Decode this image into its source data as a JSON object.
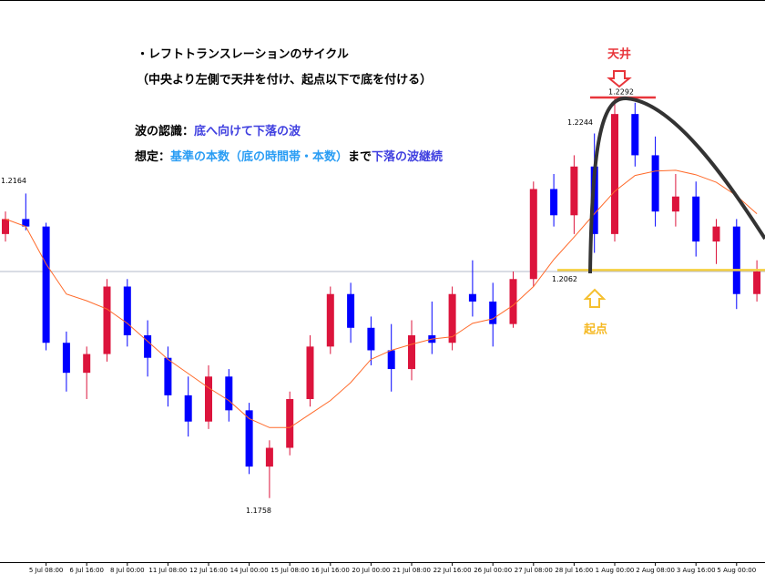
{
  "chart_data": {
    "type": "candlestick",
    "categories": [
      null,
      null,
      "5 Jul 08:00",
      null,
      "6 Jul 16:00",
      null,
      "8 Jul 00:00",
      null,
      "11 Jul 08:00",
      null,
      "12 Jul 16:00",
      null,
      "14 Jul 00:00",
      null,
      "15 Jul 08:00",
      null,
      "16 Jul 16:00",
      null,
      "20 Jul 00:00",
      null,
      "21 Jul 08:00",
      null,
      "22 Jul 16:00",
      null,
      "26 Jul 00:00",
      null,
      "27 Jul 08:00",
      null,
      "28 Jul 16:00",
      null,
      "1 Aug 00:00",
      null,
      "2 Aug 08:00",
      null,
      "3 Aug 16:00",
      null,
      "5 Aug 00:00",
      null
    ],
    "open": [
      1.211,
      1.213,
      1.212,
      1.1965,
      1.1925,
      1.195,
      1.204,
      1.1975,
      1.1945,
      1.1895,
      1.186,
      1.192,
      1.1875,
      1.18,
      1.1825,
      1.189,
      1.196,
      1.203,
      1.1985,
      1.1955,
      1.193,
      1.1975,
      1.1965,
      1.203,
      1.202,
      1.199,
      1.205,
      1.217,
      1.2135,
      1.22,
      1.211,
      1.227,
      1.2215,
      1.214,
      1.216,
      1.21,
      1.212,
      1.203
    ],
    "high": [
      1.214,
      1.2164,
      1.2125,
      1.198,
      1.196,
      1.205,
      1.205,
      1.1995,
      1.196,
      1.192,
      1.1935,
      1.193,
      1.1885,
      1.1835,
      1.19,
      1.1975,
      1.204,
      1.2045,
      1.2,
      1.199,
      1.1995,
      1.202,
      1.204,
      1.2075,
      1.2045,
      1.206,
      1.218,
      1.219,
      1.2215,
      1.2244,
      1.2292,
      1.2285,
      1.224,
      1.219,
      1.218,
      1.213,
      1.213,
      1.2075
    ],
    "low": [
      1.21,
      1.2115,
      1.1955,
      1.19,
      1.189,
      1.194,
      1.196,
      1.192,
      1.188,
      1.184,
      1.185,
      1.186,
      1.179,
      1.1758,
      1.1815,
      1.188,
      1.195,
      1.1965,
      1.1935,
      1.19,
      1.1915,
      1.195,
      1.1955,
      1.2,
      1.196,
      1.1985,
      1.204,
      1.212,
      1.211,
      1.2085,
      1.21,
      1.22,
      1.212,
      1.212,
      1.208,
      1.207,
      1.201,
      1.202
    ],
    "close": [
      1.213,
      1.212,
      1.1965,
      1.1925,
      1.195,
      1.204,
      1.1975,
      1.1945,
      1.1895,
      1.186,
      1.192,
      1.1875,
      1.18,
      1.1825,
      1.189,
      1.196,
      1.203,
      1.1985,
      1.1955,
      1.193,
      1.1975,
      1.1965,
      1.203,
      1.202,
      1.199,
      1.205,
      1.217,
      1.2135,
      1.22,
      1.211,
      1.227,
      1.2215,
      1.214,
      1.216,
      1.21,
      1.212,
      1.203,
      1.206
    ],
    "up_color": "#dc143c",
    "down_color": "#0000ff",
    "moving_average": {
      "color": "#ff6a2a",
      "values": [
        1.213,
        1.212,
        1.207,
        1.203,
        1.2021,
        1.201,
        1.1991,
        1.1967,
        1.1943,
        1.1924,
        1.1905,
        1.1888,
        1.1864,
        1.1852,
        1.1852,
        1.187,
        1.1888,
        1.1912,
        1.1943,
        1.1955,
        1.1963,
        1.197,
        1.1973,
        1.1991,
        1.1997,
        1.2015,
        1.204,
        1.2076,
        1.2106,
        1.2137,
        1.2167,
        1.2188,
        1.2194,
        1.2195,
        1.2189,
        1.2179,
        1.2161,
        1.2137
      ]
    },
    "ylim": [
      1.1675,
      1.2422
    ],
    "price_labels": [
      1.2164,
      1.2292,
      1.2244,
      1.2062,
      1.1758
    ],
    "annotations": {
      "title": "・レフトトランスレーションのサイクル",
      "subtitle": "（中央より左側で天井を付け、起点以下で底を付ける）",
      "wave_label": "波の認識：",
      "wave_text": "底へ向けて下落の波",
      "assume_label": "想定：",
      "assume_text1": "基準の本数（底の時間帯・本数）",
      "assume_text2": "まで",
      "assume_text3": "下落の波継続",
      "top_label": "天井",
      "origin_label": "起点"
    }
  }
}
